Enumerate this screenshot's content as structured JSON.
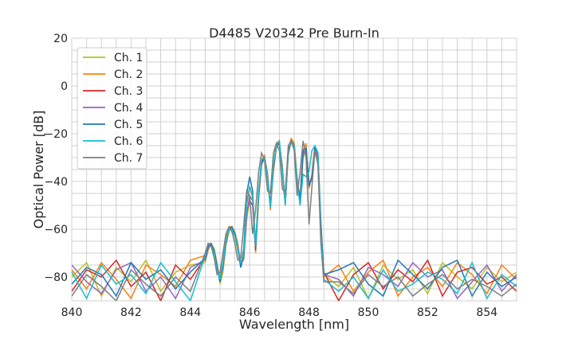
{
  "chart_data": {
    "type": "line",
    "title": "D4485 V20342 Pre Burn-In",
    "xlabel": "Wavelength [nm]",
    "ylabel": "Optical Power [dB]",
    "xlim": [
      840,
      855
    ],
    "ylim": [
      -90,
      20
    ],
    "xticks": [
      840,
      842,
      844,
      846,
      848,
      850,
      852,
      854
    ],
    "yticks": [
      20,
      0,
      -20,
      -40,
      -60,
      -80
    ],
    "grid": true,
    "legend_position": "top-left",
    "x": [
      840,
      840.5,
      841,
      841.5,
      842,
      842.5,
      843,
      843.5,
      844,
      844.5,
      844.6,
      844.7,
      844.8,
      844.9,
      845.0,
      845.1,
      845.2,
      845.3,
      845.4,
      845.5,
      845.6,
      845.7,
      845.8,
      845.9,
      846.0,
      846.1,
      846.2,
      846.3,
      846.4,
      846.5,
      846.6,
      846.7,
      846.8,
      846.9,
      847.0,
      847.1,
      847.2,
      847.3,
      847.4,
      847.5,
      847.6,
      847.7,
      847.8,
      847.9,
      848.0,
      848.1,
      848.2,
      848.3,
      848.4,
      848.5,
      849,
      849.5,
      850,
      850.5,
      851,
      851.5,
      852,
      852.5,
      853,
      853.5,
      854,
      854.5,
      855
    ],
    "series": [
      {
        "name": "Ch. 1",
        "color": "#bcbd22",
        "values": [
          -80,
          -74,
          -88,
          -76,
          -82,
          -73,
          -86,
          -78,
          -75,
          -74,
          -69,
          -66,
          -68,
          -74,
          -83,
          -78,
          -67,
          -61,
          -59,
          -61,
          -66,
          -74,
          -73,
          -56,
          -47,
          -47,
          -70,
          -48,
          -33,
          -30,
          -36,
          -51,
          -36,
          -26,
          -24,
          -33,
          -50,
          -29,
          -23,
          -24,
          -38,
          -50,
          -30,
          -27,
          -40,
          -40,
          -27,
          -29,
          -58,
          -79,
          -84,
          -76,
          -89,
          -75,
          -81,
          -77,
          -87,
          -74,
          -80,
          -85,
          -76,
          -82,
          -78
        ]
      },
      {
        "name": "Ch. 2",
        "color": "#ff7f0e",
        "values": [
          -77,
          -85,
          -74,
          -81,
          -89,
          -75,
          -79,
          -84,
          -73,
          -71,
          -66,
          -66,
          -70,
          -77,
          -80,
          -74,
          -64,
          -59,
          -59,
          -63,
          -69,
          -75,
          -69,
          -50,
          -42,
          -47,
          -66,
          -44,
          -31,
          -29,
          -38,
          -52,
          -33,
          -24,
          -23,
          -36,
          -50,
          -26,
          -22,
          -24,
          -41,
          -49,
          -27,
          -24,
          -43,
          -37,
          -25,
          -31,
          -61,
          -80,
          -75,
          -86,
          -78,
          -73,
          -88,
          -80,
          -76,
          -84,
          -74,
          -79,
          -87,
          -75,
          -81
        ]
      },
      {
        "name": "Ch. 3",
        "color": "#d62728",
        "values": [
          -86,
          -77,
          -80,
          -73,
          -84,
          -78,
          -90,
          -75,
          -81,
          -72,
          -67,
          -67,
          -69,
          -76,
          -81,
          -75,
          -66,
          -60,
          -60,
          -62,
          -68,
          -76,
          -71,
          -53,
          -48,
          -50,
          -69,
          -46,
          -32,
          -30,
          -38,
          -50,
          -34,
          -25,
          -24,
          -35,
          -49,
          -27,
          -23,
          -25,
          -40,
          -48,
          -28,
          -27,
          -42,
          -38,
          -26,
          -30,
          -60,
          -78,
          -90,
          -79,
          -74,
          -85,
          -77,
          -82,
          -73,
          -88,
          -78,
          -76,
          -83,
          -80,
          -86
        ]
      },
      {
        "name": "Ch. 4",
        "color": "#9467bd",
        "values": [
          -75,
          -82,
          -87,
          -77,
          -74,
          -86,
          -80,
          -89,
          -76,
          -73,
          -68,
          -66,
          -69,
          -75,
          -81,
          -76,
          -66,
          -60,
          -59,
          -62,
          -67,
          -75,
          -72,
          -54,
          -46,
          -48,
          -68,
          -46,
          -33,
          -30,
          -37,
          -50,
          -35,
          -25,
          -24,
          -34,
          -49,
          -28,
          -23,
          -25,
          -39,
          -47,
          -29,
          -26,
          -41,
          -39,
          -26,
          -30,
          -59,
          -79,
          -81,
          -88,
          -76,
          -79,
          -84,
          -74,
          -80,
          -77,
          -89,
          -82,
          -75,
          -86,
          -79
        ]
      },
      {
        "name": "Ch. 5",
        "color": "#1f77b4",
        "values": [
          -83,
          -76,
          -79,
          -88,
          -74,
          -81,
          -77,
          -85,
          -78,
          -72,
          -67,
          -66,
          -69,
          -76,
          -82,
          -75,
          -65,
          -60,
          -59,
          -62,
          -68,
          -76,
          -68,
          -45,
          -38,
          -44,
          -68,
          -45,
          -32,
          -30,
          -38,
          -50,
          -34,
          -25,
          -24,
          -35,
          -49,
          -27,
          -23,
          -25,
          -40,
          -48,
          -27,
          -26,
          -42,
          -38,
          -26,
          -28,
          -57,
          -79,
          -77,
          -74,
          -83,
          -88,
          -73,
          -79,
          -85,
          -76,
          -73,
          -88,
          -78,
          -84,
          -80
        ]
      },
      {
        "name": "Ch. 6",
        "color": "#17becf",
        "values": [
          -78,
          -89,
          -75,
          -83,
          -79,
          -87,
          -74,
          -82,
          -90,
          -71,
          -66,
          -67,
          -70,
          -77,
          -81,
          -74,
          -65,
          -60,
          -60,
          -63,
          -68,
          -74,
          -70,
          -49,
          -42,
          -46,
          -67,
          -44,
          -31,
          -30,
          -38,
          -51,
          -33,
          -25,
          -23,
          -35,
          -50,
          -26,
          -23,
          -25,
          -40,
          -50,
          -37,
          -38,
          -36,
          -27,
          -25,
          -28,
          -62,
          -81,
          -86,
          -80,
          -89,
          -77,
          -86,
          -83,
          -78,
          -81,
          -87,
          -74,
          -89,
          -79,
          -84
        ]
      },
      {
        "name": "Ch. 7",
        "color": "#7f7f7f",
        "values": [
          -88,
          -79,
          -84,
          -90,
          -77,
          -83,
          -88,
          -80,
          -86,
          -70,
          -66,
          -67,
          -72,
          -79,
          -78,
          -70,
          -62,
          -59,
          -61,
          -66,
          -73,
          -72,
          -58,
          -44,
          -46,
          -62,
          -52,
          -36,
          -28,
          -31,
          -44,
          -45,
          -28,
          -24,
          -27,
          -43,
          -45,
          -25,
          -23,
          -27,
          -46,
          -36,
          -23,
          -30,
          -58,
          -42,
          -27,
          -33,
          -66,
          -82,
          -82,
          -87,
          -79,
          -84,
          -80,
          -88,
          -83,
          -79,
          -85,
          -81,
          -84,
          -88,
          -83
        ]
      }
    ]
  }
}
